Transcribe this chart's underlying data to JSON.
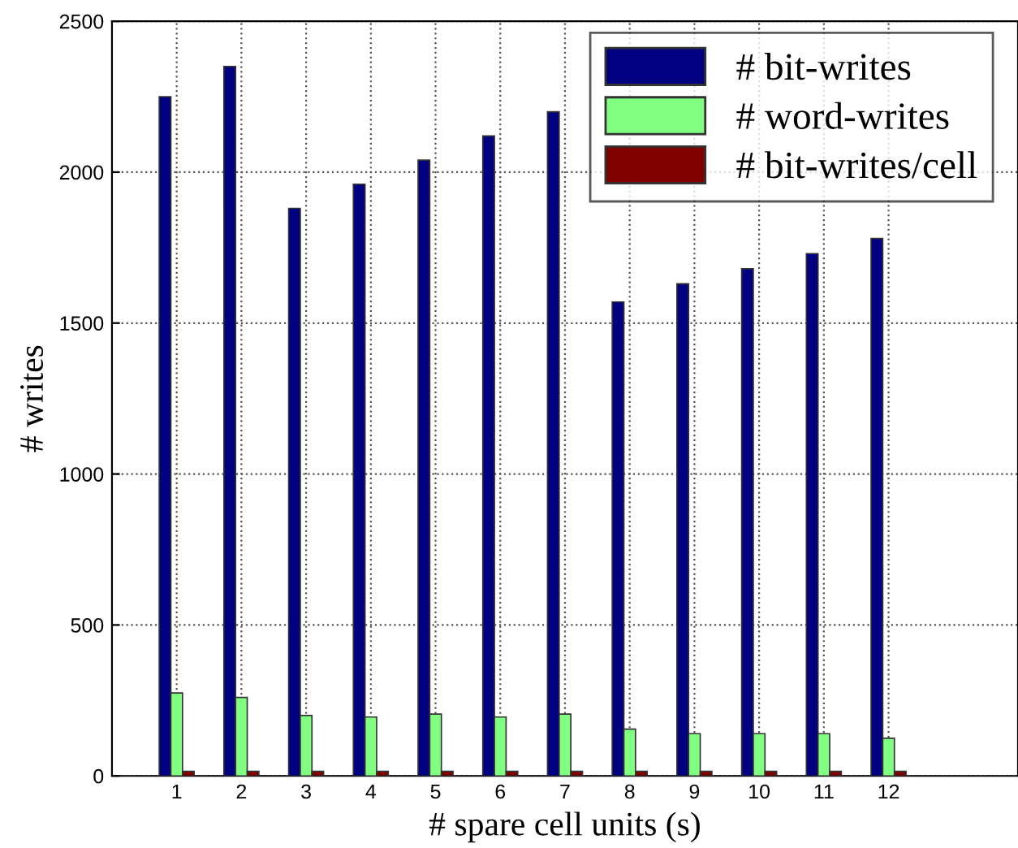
{
  "chart_data": {
    "type": "bar",
    "xlabel": "# spare cell units (s)",
    "ylabel": "# writes",
    "x": [
      1,
      2,
      3,
      4,
      5,
      6,
      7,
      8,
      9,
      10,
      11,
      12
    ],
    "series": [
      {
        "name": "# bit-writes",
        "color": "#000080",
        "values": [
          2250,
          2350,
          1880,
          1960,
          2040,
          2120,
          2200,
          1570,
          1630,
          1680,
          1730,
          1780
        ]
      },
      {
        "name": "# word-writes",
        "color": "#80ff80",
        "values": [
          275,
          260,
          200,
          195,
          205,
          195,
          205,
          155,
          140,
          140,
          140,
          125
        ]
      },
      {
        "name": "# bit-writes/cell",
        "color": "#800000",
        "values": [
          15,
          15,
          15,
          15,
          15,
          15,
          15,
          15,
          15,
          15,
          15,
          15
        ]
      }
    ],
    "xlim": [
      0,
      14
    ],
    "xticks": [
      1,
      2,
      3,
      4,
      5,
      6,
      7,
      8,
      9,
      10,
      11,
      12
    ],
    "ylim": [
      0,
      2500
    ],
    "yticks": [
      0,
      500,
      1000,
      1500,
      2000,
      2500
    ],
    "grid": true,
    "legend": "top right"
  }
}
